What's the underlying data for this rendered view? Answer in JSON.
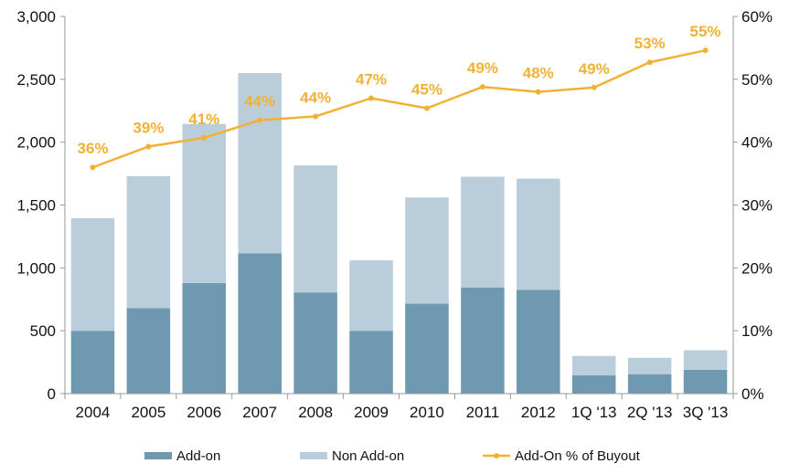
{
  "chart_data": {
    "type": "bar",
    "stacked": true,
    "categories": [
      "2004",
      "2005",
      "2006",
      "2007",
      "2008",
      "2009",
      "2010",
      "2011",
      "2012",
      "1Q '13",
      "2Q '13",
      "3Q '13"
    ],
    "series": [
      {
        "name": "Add-on",
        "kind": "bar",
        "axis": "left",
        "color": "#6f98b1",
        "values": [
          500,
          680,
          880,
          1115,
          805,
          500,
          715,
          845,
          825,
          145,
          155,
          190
        ]
      },
      {
        "name": "Non Add-on",
        "kind": "bar",
        "axis": "left",
        "color": "#b9ceda",
        "values": [
          895,
          1050,
          1265,
          1435,
          1010,
          560,
          845,
          880,
          885,
          155,
          130,
          155
        ]
      },
      {
        "name": "Add-On % of Buyout",
        "kind": "line",
        "axis": "right",
        "color": "#f2b134",
        "values": [
          36,
          39.3,
          40.7,
          43.5,
          44.1,
          47,
          45.4,
          48.8,
          48,
          48.7,
          52.7,
          54.6
        ],
        "labels": [
          "36%",
          "39%",
          "41%",
          "44%",
          "44%",
          "47%",
          "45%",
          "49%",
          "48%",
          "49%",
          "53%",
          "55%"
        ]
      }
    ],
    "y_left": {
      "ylim": [
        0,
        3000
      ],
      "ticks": [
        0,
        500,
        1000,
        1500,
        2000,
        2500,
        3000
      ],
      "tick_labels": [
        "0",
        "500",
        "1,000",
        "1,500",
        "2,000",
        "2,500",
        "3,000"
      ]
    },
    "y_right": {
      "ylim": [
        0,
        60
      ],
      "ticks": [
        0,
        10,
        20,
        30,
        40,
        50,
        60
      ],
      "tick_labels": [
        "0%",
        "10%",
        "20%",
        "30%",
        "40%",
        "50%",
        "60%"
      ]
    },
    "grid": false,
    "legend": {
      "position": "bottom",
      "items": [
        "Add-on",
        "Non Add-on",
        "Add-On % of Buyout"
      ]
    },
    "title": "",
    "xlabel": "",
    "ylabel": ""
  }
}
